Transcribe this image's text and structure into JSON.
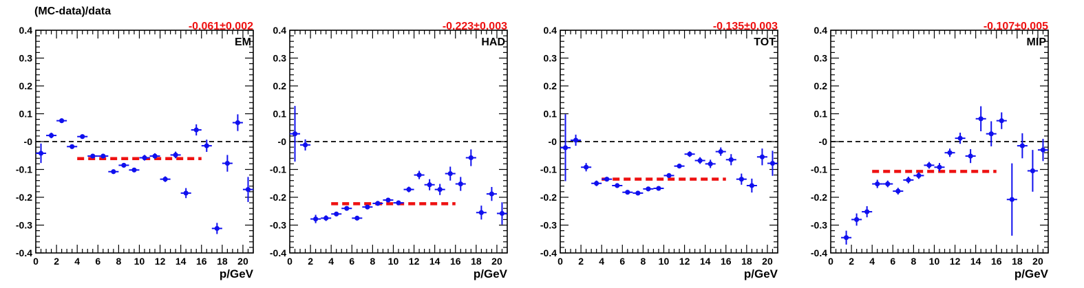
{
  "figure": {
    "ylabel": "(MC-data)/data"
  },
  "chart_data": [
    {
      "type": "scatter",
      "panel_label": "EM",
      "fit_text": "-0.061±0.002",
      "fit_value": -0.061,
      "fit_range": [
        4,
        16
      ],
      "xlabel": "p/GeV",
      "xlim": [
        0,
        21
      ],
      "ylim": [
        -0.4,
        0.4
      ],
      "xticks": [
        0,
        2,
        4,
        6,
        8,
        10,
        12,
        14,
        16,
        18,
        20
      ],
      "yticks": [
        "-0.4",
        "-0.3",
        "-0.2",
        "-0.1",
        "-0",
        "0.1",
        "0.2",
        "0.3",
        "0.4"
      ],
      "series": [
        {
          "x": [
            0.5,
            1.5,
            2.5,
            3.5,
            4.5,
            5.5,
            6.5,
            7.5,
            8.5,
            9.5,
            10.5,
            11.5,
            12.5,
            13.5,
            14.5,
            15.5,
            16.5,
            17.5,
            18.5,
            19.5,
            20.5
          ],
          "y": [
            -0.042,
            0.022,
            0.075,
            -0.018,
            0.018,
            -0.052,
            -0.052,
            -0.108,
            -0.085,
            -0.102,
            -0.058,
            -0.052,
            -0.135,
            -0.048,
            -0.185,
            0.042,
            -0.015,
            -0.312,
            -0.078,
            0.068,
            -0.172
          ],
          "yerr": [
            0.035,
            0.01,
            0.008,
            0.008,
            0.007,
            0.007,
            0.008,
            0.007,
            0.008,
            0.008,
            0.01,
            0.01,
            0.01,
            0.012,
            0.018,
            0.02,
            0.022,
            0.02,
            0.03,
            0.03,
            0.045
          ]
        }
      ],
      "marker_color": "#1010ee",
      "fit_color": "#ee1111",
      "zero_line_color": "#000000"
    },
    {
      "type": "scatter",
      "panel_label": "HAD",
      "fit_text": "-0.223±0.003",
      "fit_value": -0.223,
      "fit_range": [
        4,
        16
      ],
      "xlabel": "p/GeV",
      "xlim": [
        0,
        21
      ],
      "ylim": [
        -0.4,
        0.4
      ],
      "xticks": [
        0,
        2,
        4,
        6,
        8,
        10,
        12,
        14,
        16,
        18,
        20
      ],
      "yticks": [
        "-0.4",
        "-0.3",
        "-0.2",
        "-0.1",
        "-0",
        "0.1",
        "0.2",
        "0.3",
        "0.4"
      ],
      "series": [
        {
          "x": [
            0.5,
            1.5,
            2.5,
            3.5,
            4.5,
            5.5,
            6.5,
            7.5,
            8.5,
            9.5,
            10.5,
            11.5,
            12.5,
            13.5,
            14.5,
            15.5,
            16.5,
            17.5,
            18.5,
            19.5,
            20.5
          ],
          "y": [
            0.028,
            -0.012,
            -0.278,
            -0.275,
            -0.26,
            -0.24,
            -0.275,
            -0.235,
            -0.222,
            -0.21,
            -0.22,
            -0.172,
            -0.12,
            -0.155,
            -0.172,
            -0.115,
            -0.152,
            -0.058,
            -0.255,
            -0.188,
            -0.258
          ],
          "yerr": [
            0.1,
            0.02,
            0.015,
            0.01,
            0.008,
            0.007,
            0.007,
            0.007,
            0.007,
            0.007,
            0.008,
            0.01,
            0.015,
            0.02,
            0.02,
            0.025,
            0.025,
            0.03,
            0.025,
            0.025,
            0.04
          ]
        }
      ],
      "marker_color": "#1010ee",
      "fit_color": "#ee1111",
      "zero_line_color": "#000000"
    },
    {
      "type": "scatter",
      "panel_label": "TOT",
      "fit_text": "-0.135±0.003",
      "fit_value": -0.135,
      "fit_range": [
        4,
        16
      ],
      "xlabel": "p/GeV",
      "xlim": [
        0,
        21
      ],
      "ylim": [
        -0.4,
        0.4
      ],
      "xticks": [
        0,
        2,
        4,
        6,
        8,
        10,
        12,
        14,
        16,
        18,
        20
      ],
      "yticks": [
        "-0.4",
        "-0.3",
        "-0.2",
        "-0.1",
        "-0",
        "0.1",
        "0.2",
        "0.3",
        "0.4"
      ],
      "series": [
        {
          "x": [
            0.5,
            1.5,
            2.5,
            3.5,
            4.5,
            5.5,
            6.5,
            7.5,
            8.5,
            9.5,
            10.5,
            11.5,
            12.5,
            13.5,
            14.5,
            15.5,
            16.5,
            17.5,
            18.5,
            19.5,
            20.5
          ],
          "y": [
            -0.022,
            0.005,
            -0.092,
            -0.15,
            -0.135,
            -0.158,
            -0.182,
            -0.185,
            -0.17,
            -0.168,
            -0.122,
            -0.088,
            -0.045,
            -0.068,
            -0.08,
            -0.036,
            -0.065,
            -0.135,
            -0.158,
            -0.055,
            -0.078
          ],
          "yerr": [
            0.12,
            0.02,
            0.015,
            0.01,
            0.008,
            0.007,
            0.007,
            0.007,
            0.007,
            0.007,
            0.008,
            0.008,
            0.01,
            0.012,
            0.015,
            0.015,
            0.02,
            0.02,
            0.025,
            0.03,
            0.045
          ]
        }
      ],
      "marker_color": "#1010ee",
      "fit_color": "#ee1111",
      "zero_line_color": "#000000"
    },
    {
      "type": "scatter",
      "panel_label": "MIP",
      "fit_text": "-0.107±0.005",
      "fit_value": -0.107,
      "fit_range": [
        4,
        16
      ],
      "xlabel": "p/GeV",
      "xlim": [
        0,
        21
      ],
      "ylim": [
        -0.4,
        0.4
      ],
      "xticks": [
        0,
        2,
        4,
        6,
        8,
        10,
        12,
        14,
        16,
        18,
        20
      ],
      "yticks": [
        "-0.4",
        "-0.3",
        "-0.2",
        "-0.1",
        "-0",
        "0.1",
        "0.2",
        "0.3",
        "0.4"
      ],
      "series": [
        {
          "x": [
            1.5,
            2.5,
            3.5,
            4.5,
            5.5,
            6.5,
            7.5,
            8.5,
            9.5,
            10.5,
            11.5,
            12.5,
            13.5,
            14.5,
            15.5,
            16.5,
            17.5,
            18.5,
            19.5,
            20.5
          ],
          "y": [
            -0.345,
            -0.28,
            -0.252,
            -0.152,
            -0.152,
            -0.178,
            -0.138,
            -0.122,
            -0.085,
            -0.092,
            -0.04,
            0.012,
            -0.052,
            0.082,
            0.028,
            0.075,
            -0.208,
            -0.015,
            -0.105,
            -0.03
          ],
          "yerr": [
            0.025,
            0.022,
            0.02,
            0.015,
            0.012,
            0.012,
            0.012,
            0.012,
            0.012,
            0.015,
            0.015,
            0.02,
            0.025,
            0.045,
            0.045,
            0.03,
            0.13,
            0.045,
            0.075,
            0.04
          ]
        }
      ],
      "marker_color": "#1010ee",
      "fit_color": "#ee1111",
      "zero_line_color": "#000000"
    }
  ]
}
